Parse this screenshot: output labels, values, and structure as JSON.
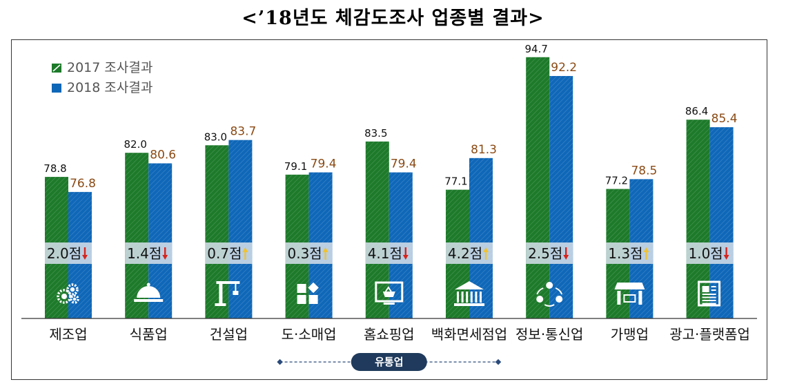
{
  "title": "<’18년도 체감도조사 업종별 결과>",
  "colors": {
    "green": "#1d7a2a",
    "blue": "#0f67b8",
    "value2017": "#111111",
    "value2018": "#8a4a14",
    "band": "#d2dde7",
    "arrow_down": "#d6241d",
    "arrow_up": "#f0c234",
    "pill": "#1f3a5c"
  },
  "chart_data": {
    "type": "bar",
    "categories": [
      "제조업",
      "식품업",
      "건설업",
      "도·소매업",
      "홈쇼핑업",
      "백화면세점업",
      "정보·통신업",
      "가맹업",
      "광고·플랫폼업"
    ],
    "series": [
      {
        "name": "2017 조사결과",
        "values": [
          78.8,
          82.0,
          83.0,
          79.1,
          83.5,
          77.1,
          94.7,
          77.2,
          86.4
        ]
      },
      {
        "name": "2018 조사결과",
        "values": [
          76.8,
          80.6,
          83.7,
          79.4,
          79.4,
          81.3,
          92.2,
          78.5,
          85.4
        ]
      }
    ],
    "value_labels_2017": [
      "78.8",
      "82.0",
      "83.0",
      "79.1",
      "83.5",
      "77.1",
      "94.7",
      "77.2",
      "86.4"
    ],
    "value_labels_2018": [
      "76.8",
      "80.6",
      "83.7",
      "79.4",
      "79.4",
      "81.3",
      "92.2",
      "78.5",
      "85.4"
    ],
    "changes": [
      "2.0점",
      "1.4점",
      "0.7점",
      "0.3점",
      "4.1점",
      "4.2점",
      "2.5점",
      "1.3점",
      "1.0점"
    ],
    "directions": [
      "down",
      "down",
      "up",
      "up",
      "down",
      "up",
      "down",
      "up",
      "down"
    ],
    "icons": [
      "gears-icon",
      "cloche-icon",
      "crane-icon",
      "retail-blocks-icon",
      "tv-shopping-basket-icon",
      "department-store-icon",
      "network-people-icon",
      "storefront-icon",
      "newspaper-icon"
    ],
    "group_label": "유통업",
    "group_span": [
      3,
      5
    ],
    "legend_placement": "top-left",
    "ylim": [
      60,
      100
    ]
  }
}
